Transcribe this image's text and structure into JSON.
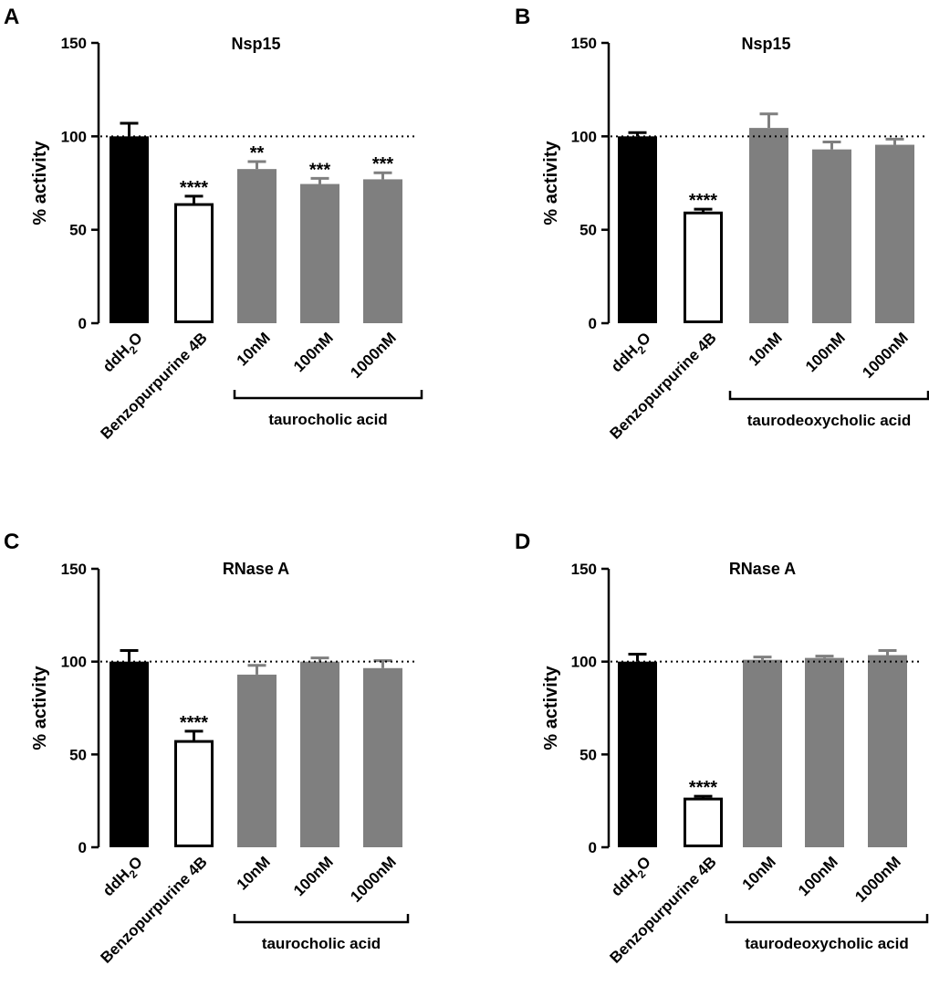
{
  "chart_data": [
    {
      "panel": "A",
      "type": "bar",
      "title": "Nsp15",
      "ylabel": "% activity",
      "ylim": [
        0,
        150
      ],
      "yticks": [
        "0",
        "50",
        "100",
        "150"
      ],
      "reference_line": 100,
      "categories": [
        "ddH2O",
        "Benzopurpurine 4B",
        "10nM",
        "100nM",
        "1000nM"
      ],
      "values": [
        100,
        63.5,
        82.5,
        74.5,
        77
      ],
      "errors": [
        7,
        4.5,
        4,
        3,
        3.5
      ],
      "significance": [
        "",
        "****",
        "**",
        "***",
        "***"
      ],
      "colors": [
        "#000000",
        "#ffffff",
        "#7f7f7f",
        "#7f7f7f",
        "#7f7f7f"
      ],
      "group_label": "taurocholic acid"
    },
    {
      "panel": "B",
      "type": "bar",
      "title": "Nsp15",
      "ylabel": "% activity",
      "ylim": [
        0,
        150
      ],
      "yticks": [
        "0",
        "50",
        "100",
        "150"
      ],
      "reference_line": 100,
      "categories": [
        "ddH2O",
        "Benzopurpurine 4B",
        "10nM",
        "100nM",
        "1000nM"
      ],
      "values": [
        100,
        59,
        104.5,
        93,
        95.5
      ],
      "errors": [
        2,
        2,
        7.5,
        4,
        3
      ],
      "significance": [
        "",
        "****",
        "",
        "",
        ""
      ],
      "colors": [
        "#000000",
        "#ffffff",
        "#7f7f7f",
        "#7f7f7f",
        "#7f7f7f"
      ],
      "group_label": "taurodeoxycholic acid"
    },
    {
      "panel": "C",
      "type": "bar",
      "title": "RNase A",
      "ylabel": "% activity",
      "ylim": [
        0,
        150
      ],
      "yticks": [
        "0",
        "50",
        "100",
        "150"
      ],
      "reference_line": 100,
      "categories": [
        "ddH2O",
        "Benzopurpurine 4B",
        "10nM",
        "100nM",
        "1000nM"
      ],
      "values": [
        100,
        57,
        93,
        100,
        96.5
      ],
      "errors": [
        6,
        5.5,
        5,
        2,
        4
      ],
      "significance": [
        "",
        "****",
        "",
        "",
        ""
      ],
      "colors": [
        "#000000",
        "#ffffff",
        "#7f7f7f",
        "#7f7f7f",
        "#7f7f7f"
      ],
      "group_label": "taurocholic acid"
    },
    {
      "panel": "D",
      "type": "bar",
      "title": "RNase A",
      "ylabel": "% activity",
      "ylim": [
        0,
        150
      ],
      "yticks": [
        "0",
        "50",
        "100",
        "150"
      ],
      "reference_line": 100,
      "categories": [
        "ddH2O",
        "Benzopurpurine 4B",
        "10nM",
        "100nM",
        "1000nM"
      ],
      "values": [
        100,
        26,
        101,
        102,
        103.5
      ],
      "errors": [
        4,
        1.5,
        1.5,
        1,
        2.5
      ],
      "significance": [
        "",
        "****",
        "",
        "",
        ""
      ],
      "colors": [
        "#000000",
        "#ffffff",
        "#7f7f7f",
        "#7f7f7f",
        "#7f7f7f"
      ],
      "group_label": "taurodeoxycholic acid"
    }
  ]
}
